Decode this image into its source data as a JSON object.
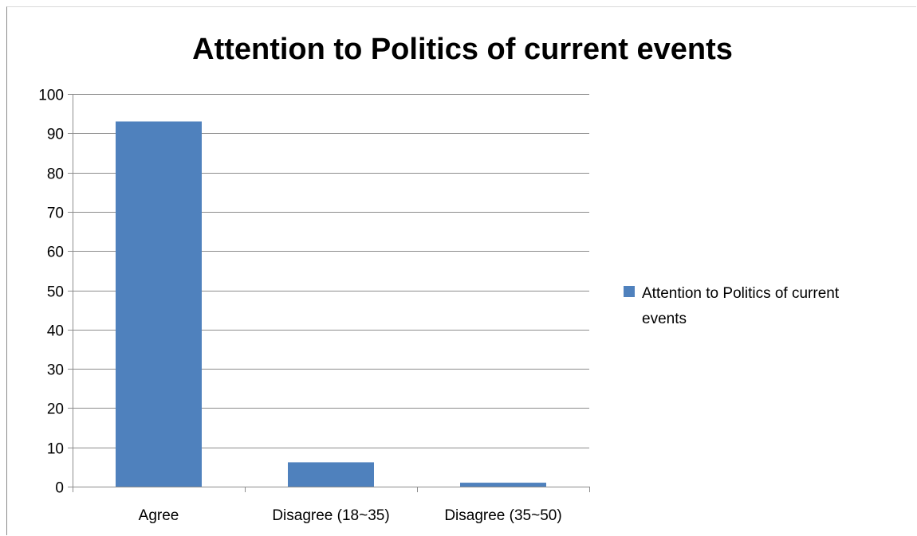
{
  "chart_data": {
    "type": "bar",
    "title": "Attention to Politics of current events",
    "xlabel": "",
    "ylabel": "",
    "categories": [
      "Agree",
      "Disagree (18~35)",
      "Disagree (35~50)"
    ],
    "series": [
      {
        "name": "Attention to Politics of current events",
        "values": [
          93,
          6.2,
          1
        ],
        "color": "#4f81bd"
      }
    ],
    "ylim": [
      0,
      100
    ],
    "y_ticks": [
      "0",
      "10",
      "20",
      "30",
      "40",
      "50",
      "60",
      "70",
      "80",
      "90",
      "100"
    ],
    "grid": true,
    "legend": {
      "position": "right",
      "label_lines": [
        "Attention to Politics of current",
        "events"
      ]
    }
  }
}
